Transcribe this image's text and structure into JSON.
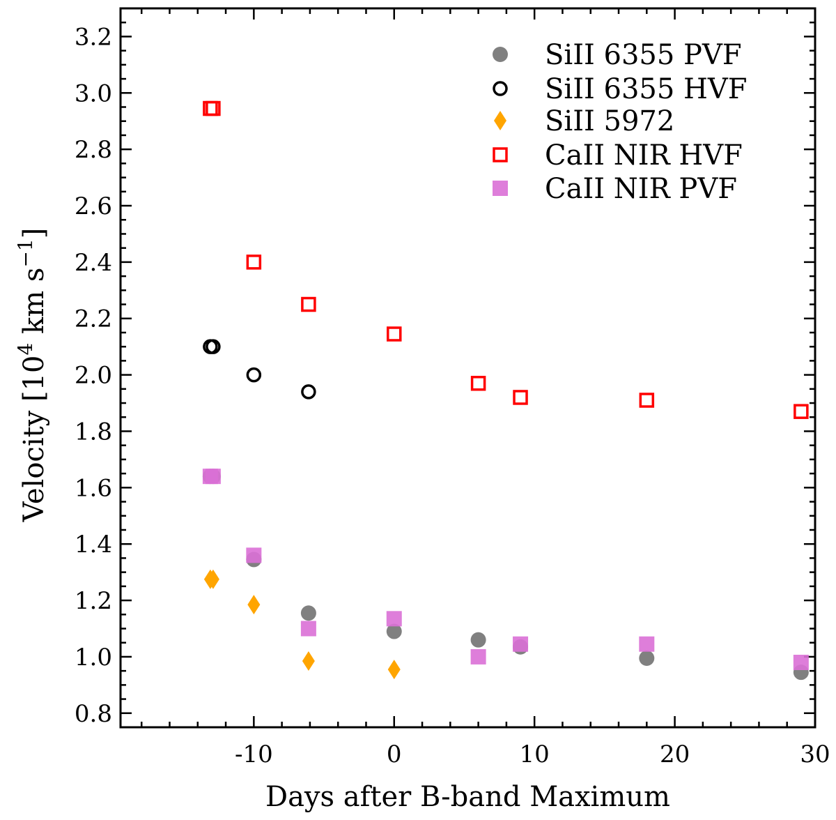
{
  "chart_data": {
    "type": "scatter",
    "title": "",
    "xlabel": "Days after B-band Maximum",
    "ylabel": "Velocity [10",
    "ylabel_sup": "4",
    "ylabel_units": " km s",
    "ylabel_units_sup": "−1",
    "ylabel_end": "]",
    "xlim": [
      -19.5,
      30
    ],
    "ylim": [
      0.75,
      3.3
    ],
    "xticks": [
      -10,
      0,
      10,
      20,
      30
    ],
    "xtick_labels": [
      "-10",
      "0",
      "10",
      "20",
      "30"
    ],
    "yticks": [
      0.8,
      1.0,
      1.2,
      1.4,
      1.6,
      1.8,
      2.0,
      2.2,
      2.4,
      2.6,
      2.8,
      3.0,
      3.2
    ],
    "ytick_labels": [
      "0.8",
      "1.0",
      "1.2",
      "1.4",
      "1.6",
      "1.8",
      "2.0",
      "2.2",
      "2.4",
      "2.6",
      "2.8",
      "3.0",
      "3.2"
    ],
    "grid": false,
    "legend_position": "top-right",
    "series": [
      {
        "name": "SiII 6355 PVF",
        "marker": "circle",
        "filled": true,
        "color": "#555555",
        "opacity": 0.75,
        "points": [
          [
            -13.1,
            1.64
          ],
          [
            -10.0,
            1.345
          ],
          [
            -6.1,
            1.155
          ],
          [
            0.0,
            1.09
          ],
          [
            6.0,
            1.06
          ],
          [
            9.0,
            1.035
          ],
          [
            18.0,
            0.995
          ],
          [
            29.0,
            0.945
          ]
        ]
      },
      {
        "name": "SiII 6355 HVF",
        "marker": "circle",
        "filled": false,
        "color": "#000000",
        "opacity": 1,
        "points": [
          [
            -13.1,
            2.1
          ],
          [
            -10.0,
            2.0
          ],
          [
            -6.1,
            1.94
          ]
        ]
      },
      {
        "name": "SiII 5972",
        "marker": "diamond",
        "filled": true,
        "color": "#ffa500",
        "opacity": 1,
        "points": [
          [
            -13.1,
            1.275
          ],
          [
            -10.0,
            1.185
          ],
          [
            -6.1,
            0.985
          ],
          [
            0.0,
            0.955
          ]
        ]
      },
      {
        "name": "CaII NIR HVF",
        "marker": "square",
        "filled": false,
        "color": "#ff0000",
        "opacity": 1,
        "points": [
          [
            -13.1,
            2.945
          ],
          [
            -10.0,
            2.4
          ],
          [
            -6.1,
            2.25
          ],
          [
            0.0,
            2.145
          ],
          [
            6.0,
            1.97
          ],
          [
            9.0,
            1.92
          ],
          [
            18.0,
            1.91
          ],
          [
            29.0,
            1.87
          ]
        ]
      },
      {
        "name": "CaII NIR PVF",
        "marker": "square",
        "filled": true,
        "color": "#da70d6",
        "opacity": 0.9,
        "points": [
          [
            -13.1,
            1.64
          ],
          [
            -10.0,
            1.36
          ],
          [
            -6.1,
            1.1
          ],
          [
            0.0,
            1.135
          ],
          [
            6.0,
            1.0
          ],
          [
            9.0,
            1.045
          ],
          [
            18.0,
            1.045
          ],
          [
            29.0,
            0.98
          ]
        ]
      }
    ]
  }
}
